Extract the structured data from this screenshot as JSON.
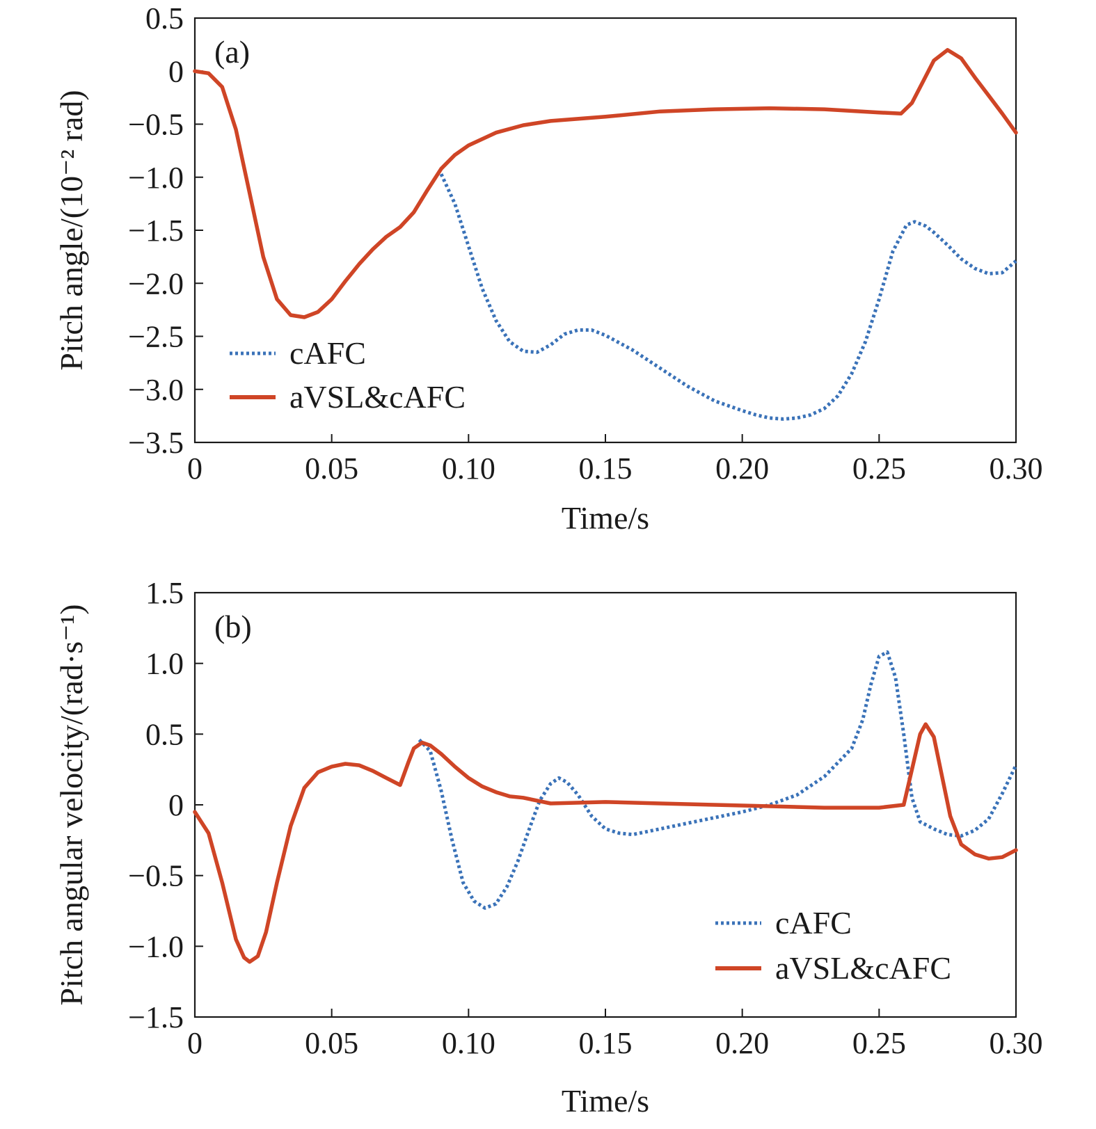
{
  "colors": {
    "cAFC": "#3a72b8",
    "aVSL_cAFC": "#cf4526",
    "axis": "#1a1a1a"
  },
  "chart_data": [
    {
      "type": "line",
      "panel_label": "(a)",
      "xlabel": "Time/s",
      "ylabel": "Pitch angle/(10⁻² rad)",
      "xlim": [
        0,
        0.3
      ],
      "ylim": [
        -3.5,
        0.5
      ],
      "xticks": [
        0,
        0.05,
        0.1,
        0.15,
        0.2,
        0.25,
        0.3
      ],
      "xtick_labels": [
        "0",
        "0.05",
        "0.10",
        "0.15",
        "0.20",
        "0.25",
        "0.30"
      ],
      "yticks": [
        0.5,
        0,
        -0.5,
        -1.0,
        -1.5,
        -2.0,
        -2.5,
        -3.0,
        -3.5
      ],
      "ytick_labels": [
        "0.5",
        "0",
        "−0.5",
        "−1.0",
        "−1.5",
        "−2.0",
        "−2.5",
        "−3.0",
        "−3.5"
      ],
      "legend": {
        "position": "lower-left",
        "entries": [
          "cAFC",
          "aVSL&cAFC"
        ]
      },
      "series": [
        {
          "name": "cAFC",
          "style": "dotted",
          "x": [
            0.09,
            0.095,
            0.1,
            0.105,
            0.11,
            0.115,
            0.12,
            0.125,
            0.13,
            0.135,
            0.14,
            0.145,
            0.15,
            0.16,
            0.17,
            0.18,
            0.19,
            0.2,
            0.205,
            0.21,
            0.215,
            0.22,
            0.225,
            0.23,
            0.235,
            0.24,
            0.245,
            0.25,
            0.255,
            0.26,
            0.263,
            0.267,
            0.27,
            0.275,
            0.28,
            0.285,
            0.29,
            0.295,
            0.3
          ],
          "y": [
            -0.97,
            -1.25,
            -1.65,
            -2.05,
            -2.35,
            -2.55,
            -2.64,
            -2.65,
            -2.58,
            -2.48,
            -2.44,
            -2.44,
            -2.49,
            -2.63,
            -2.8,
            -2.97,
            -3.11,
            -3.2,
            -3.24,
            -3.27,
            -3.28,
            -3.27,
            -3.24,
            -3.18,
            -3.06,
            -2.85,
            -2.55,
            -2.15,
            -1.7,
            -1.45,
            -1.42,
            -1.46,
            -1.52,
            -1.64,
            -1.77,
            -1.86,
            -1.91,
            -1.9,
            -1.79
          ]
        },
        {
          "name": "aVSL&cAFC",
          "style": "solid",
          "x": [
            0,
            0.005,
            0.01,
            0.015,
            0.02,
            0.025,
            0.03,
            0.035,
            0.04,
            0.045,
            0.05,
            0.055,
            0.06,
            0.065,
            0.07,
            0.075,
            0.08,
            0.085,
            0.09,
            0.095,
            0.1,
            0.105,
            0.11,
            0.12,
            0.13,
            0.15,
            0.17,
            0.19,
            0.21,
            0.23,
            0.25,
            0.258,
            0.262,
            0.266,
            0.27,
            0.275,
            0.28,
            0.285,
            0.29,
            0.295,
            0.3
          ],
          "y": [
            0,
            -0.02,
            -0.15,
            -0.55,
            -1.15,
            -1.75,
            -2.15,
            -2.3,
            -2.32,
            -2.27,
            -2.15,
            -1.98,
            -1.82,
            -1.68,
            -1.56,
            -1.47,
            -1.33,
            -1.12,
            -0.92,
            -0.79,
            -0.7,
            -0.64,
            -0.58,
            -0.51,
            -0.47,
            -0.43,
            -0.38,
            -0.36,
            -0.35,
            -0.36,
            -0.39,
            -0.4,
            -0.3,
            -0.1,
            0.1,
            0.2,
            0.12,
            -0.06,
            -0.23,
            -0.4,
            -0.58
          ]
        }
      ]
    },
    {
      "type": "line",
      "panel_label": "(b)",
      "xlabel": "Time/s",
      "ylabel": "Pitch angular velocity/(rad·s⁻¹)",
      "xlim": [
        0,
        0.3
      ],
      "ylim": [
        -1.5,
        1.5
      ],
      "xticks": [
        0,
        0.05,
        0.1,
        0.15,
        0.2,
        0.25,
        0.3
      ],
      "xtick_labels": [
        "0",
        "0.05",
        "0.10",
        "0.15",
        "0.20",
        "0.25",
        "0.30"
      ],
      "yticks": [
        1.5,
        1.0,
        0.5,
        0,
        -0.5,
        -1.0,
        -1.5
      ],
      "ytick_labels": [
        "1.5",
        "1.0",
        "0.5",
        "0",
        "−0.5",
        "−1.0",
        "−1.5"
      ],
      "legend": {
        "position": "lower-right",
        "entries": [
          "cAFC",
          "aVSL&cAFC"
        ]
      },
      "series": [
        {
          "name": "cAFC",
          "style": "dotted",
          "x": [
            0.082,
            0.086,
            0.09,
            0.094,
            0.098,
            0.102,
            0.106,
            0.11,
            0.114,
            0.118,
            0.122,
            0.126,
            0.13,
            0.133,
            0.136,
            0.14,
            0.145,
            0.15,
            0.155,
            0.16,
            0.17,
            0.18,
            0.19,
            0.2,
            0.21,
            0.22,
            0.23,
            0.24,
            0.244,
            0.247,
            0.25,
            0.253,
            0.256,
            0.259,
            0.262,
            0.265,
            0.27,
            0.275,
            0.28,
            0.285,
            0.29,
            0.295,
            0.3
          ],
          "y": [
            0.46,
            0.38,
            0.1,
            -0.25,
            -0.55,
            -0.68,
            -0.73,
            -0.7,
            -0.58,
            -0.4,
            -0.18,
            0.03,
            0.15,
            0.19,
            0.16,
            0.07,
            -0.08,
            -0.17,
            -0.2,
            -0.21,
            -0.17,
            -0.13,
            -0.09,
            -0.05,
            0.0,
            0.07,
            0.2,
            0.4,
            0.6,
            0.85,
            1.05,
            1.08,
            0.9,
            0.5,
            0.05,
            -0.12,
            -0.17,
            -0.21,
            -0.22,
            -0.18,
            -0.1,
            0.08,
            0.28
          ]
        },
        {
          "name": "aVSL&cAFC",
          "style": "solid",
          "x": [
            0,
            0.005,
            0.01,
            0.015,
            0.018,
            0.02,
            0.023,
            0.026,
            0.03,
            0.035,
            0.04,
            0.045,
            0.05,
            0.055,
            0.06,
            0.065,
            0.07,
            0.075,
            0.078,
            0.08,
            0.083,
            0.086,
            0.09,
            0.095,
            0.1,
            0.105,
            0.11,
            0.115,
            0.12,
            0.13,
            0.15,
            0.17,
            0.19,
            0.21,
            0.23,
            0.25,
            0.259,
            0.262,
            0.265,
            0.267,
            0.27,
            0.273,
            0.276,
            0.28,
            0.285,
            0.29,
            0.295,
            0.3
          ],
          "y": [
            -0.05,
            -0.2,
            -0.55,
            -0.95,
            -1.08,
            -1.11,
            -1.07,
            -0.9,
            -0.55,
            -0.15,
            0.12,
            0.23,
            0.27,
            0.29,
            0.28,
            0.24,
            0.19,
            0.14,
            0.3,
            0.4,
            0.44,
            0.42,
            0.36,
            0.27,
            0.19,
            0.13,
            0.09,
            0.06,
            0.05,
            0.01,
            0.02,
            0.01,
            0.0,
            -0.01,
            -0.02,
            -0.02,
            0.0,
            0.25,
            0.5,
            0.57,
            0.48,
            0.2,
            -0.08,
            -0.28,
            -0.35,
            -0.38,
            -0.37,
            -0.32
          ]
        }
      ]
    }
  ]
}
